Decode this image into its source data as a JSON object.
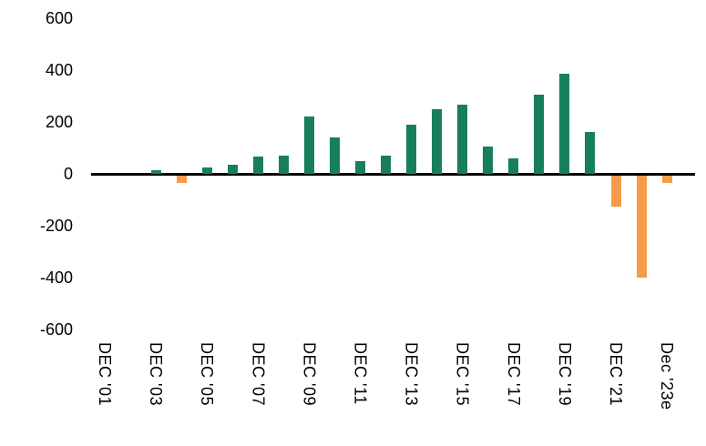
{
  "chart_data": {
    "type": "bar",
    "title": "",
    "xlabel": "",
    "ylabel": "",
    "categories": [
      "Dec '01",
      "Dec '02",
      "Dec '03",
      "Dec '04",
      "Dec '05",
      "Dec '06",
      "Dec '07",
      "Dec '08",
      "Dec '09",
      "Dec '10",
      "Dec '11",
      "Dec '12",
      "Dec '13",
      "Dec '14",
      "Dec '15",
      "Dec '16",
      "Dec '17",
      "Dec '18",
      "Dec '19",
      "Dec '20",
      "Dec '21",
      "Dec '22",
      "Dec '23e"
    ],
    "values": [
      0,
      0,
      15,
      -30,
      25,
      35,
      65,
      70,
      220,
      140,
      50,
      70,
      190,
      250,
      265,
      105,
      60,
      305,
      385,
      160,
      -120,
      -395,
      -30
    ],
    "xtick_labels": [
      {
        "index": 0,
        "text": "DEC '01"
      },
      {
        "index": 2,
        "text": "DEC '03"
      },
      {
        "index": 4,
        "text": "DEC '05"
      },
      {
        "index": 6,
        "text": "DEC '07"
      },
      {
        "index": 8,
        "text": "DEC '09"
      },
      {
        "index": 10,
        "text": "DEC '11"
      },
      {
        "index": 12,
        "text": "DEC '13"
      },
      {
        "index": 14,
        "text": "DEC '15"
      },
      {
        "index": 16,
        "text": "DEC '17"
      },
      {
        "index": 18,
        "text": "DEC '19"
      },
      {
        "index": 20,
        "text": "DEC '21"
      },
      {
        "index": 22,
        "text": "Dec '23e"
      }
    ],
    "y_ticks": [
      600,
      400,
      200,
      0,
      -200,
      -400,
      -600
    ],
    "ylim": [
      -600,
      600
    ],
    "grid": false,
    "legend": "none",
    "colors": {
      "positive_bar": "#17805A",
      "negative_bar": "#F59B49",
      "axis_line": "#000000",
      "background": "#FFFFFF"
    }
  }
}
